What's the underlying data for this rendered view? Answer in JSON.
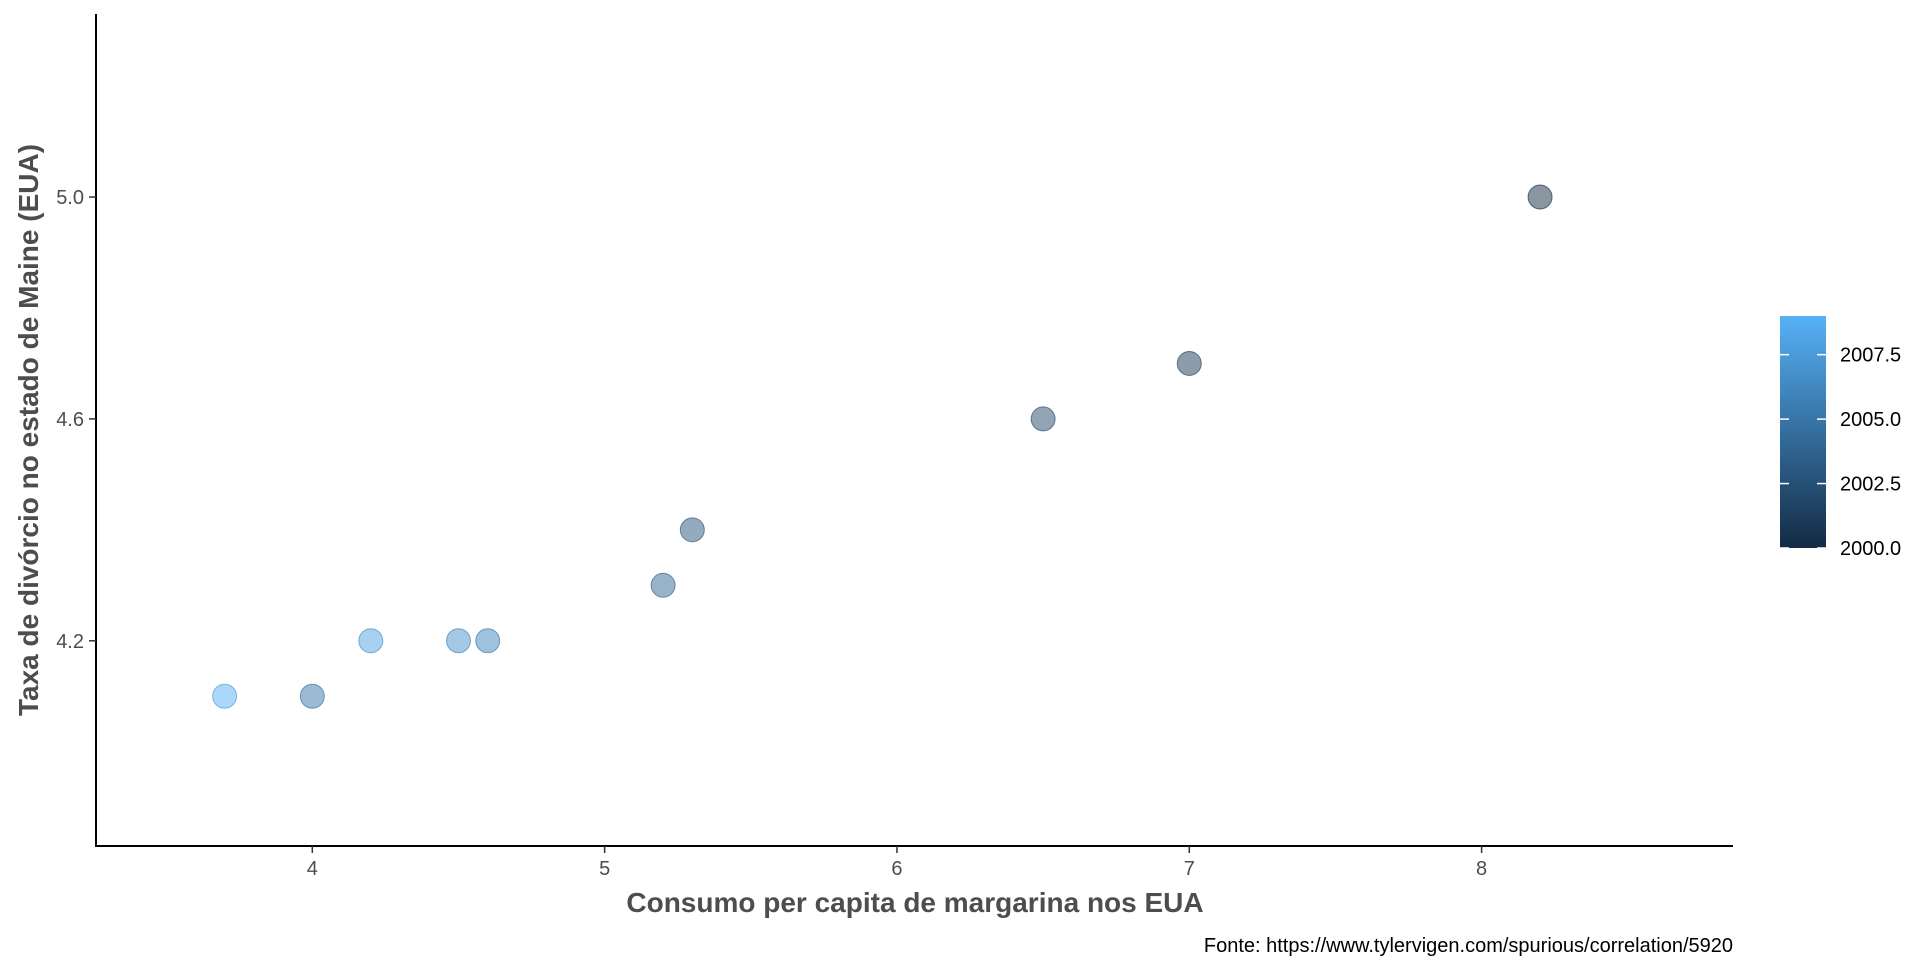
{
  "chart_data": {
    "type": "scatter",
    "title": "",
    "xlabel": "Consumo per capita de margarina nos EUA",
    "ylabel": "Taxa de divórcio no estado de Maine (EUA)",
    "caption": "Fonte: https://www.tylervigen.com/spurious/correlation/5920",
    "xlim": [
      3.26,
      8.86
    ],
    "ylim": [
      3.83,
      5.33
    ],
    "x_ticks": [
      4,
      5,
      6,
      7,
      8
    ],
    "x_tick_labels": [
      "4",
      "5",
      "6",
      "7",
      "8"
    ],
    "y_ticks": [
      4.2,
      4.6,
      5.0
    ],
    "y_tick_labels": [
      "4.2",
      "4.6",
      "5.0"
    ],
    "grid": false,
    "legend": {
      "position": "right",
      "type": "colorbar",
      "range": [
        2000,
        2009
      ],
      "ticks": [
        2000.0,
        2002.5,
        2005.0,
        2007.5
      ],
      "tick_labels": [
        "2000.0",
        "2002.5",
        "2005.0",
        "2007.5"
      ],
      "color_low": "#132b43",
      "color_high": "#56b1f7"
    },
    "points": [
      {
        "x": 8.2,
        "y": 5.0,
        "color_value": 2000
      },
      {
        "x": 7.0,
        "y": 4.7,
        "color_value": 2001
      },
      {
        "x": 6.5,
        "y": 4.6,
        "color_value": 2002
      },
      {
        "x": 5.3,
        "y": 4.4,
        "color_value": 2003
      },
      {
        "x": 5.2,
        "y": 4.3,
        "color_value": 2004
      },
      {
        "x": 4.0,
        "y": 4.1,
        "color_value": 2005
      },
      {
        "x": 4.6,
        "y": 4.2,
        "color_value": 2006
      },
      {
        "x": 4.5,
        "y": 4.2,
        "color_value": 2007
      },
      {
        "x": 4.2,
        "y": 4.2,
        "color_value": 2008
      },
      {
        "x": 3.7,
        "y": 4.1,
        "color_value": 2009
      }
    ],
    "point_alpha": 0.5
  }
}
